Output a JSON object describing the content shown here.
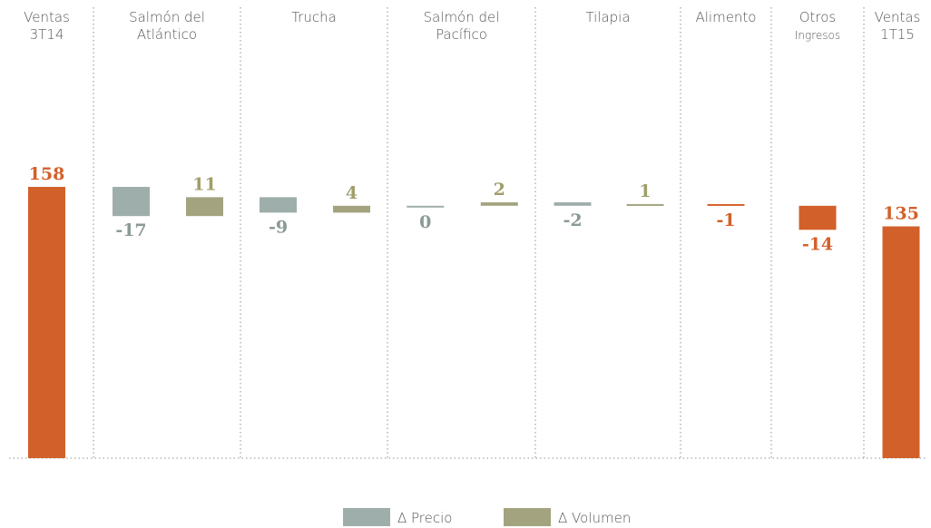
{
  "chart_data": {
    "type": "waterfall",
    "categories": [
      [
        "Ventas",
        "3T14"
      ],
      [
        "Salmón del",
        "Atlántico"
      ],
      [
        "Trucha"
      ],
      [
        "Salmón del",
        "Pacífico"
      ],
      [
        "Tilapia"
      ],
      [
        "Alimento"
      ],
      [
        "Otros",
        "Ingresos"
      ],
      [
        "Ventas",
        "1T15"
      ]
    ],
    "is_total": [
      true,
      false,
      false,
      false,
      false,
      false,
      false,
      true
    ],
    "series": [
      {
        "name": "Δ Precio",
        "color": "#9eaeab",
        "label_color": "#8a9a97",
        "values": [
          null,
          -17,
          -9,
          0,
          -2,
          null,
          null,
          null
        ]
      },
      {
        "name": "Δ Volumen",
        "color": "#a3a47f",
        "label_color": "#a09e6a",
        "values": [
          null,
          11,
          4,
          2,
          1,
          null,
          null,
          null
        ]
      },
      {
        "color": "#d2602a",
        "label_color": "#d2602a",
        "values": [
          158,
          null,
          null,
          null,
          null,
          -1,
          -14,
          135
        ]
      }
    ]
  }
}
